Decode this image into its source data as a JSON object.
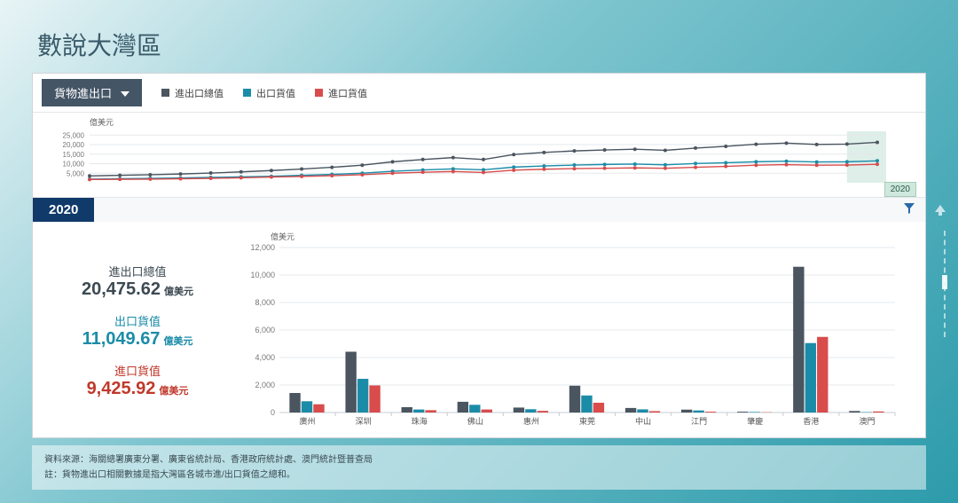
{
  "title": "數說大灣區",
  "dropdown_label": "貨物進出口",
  "legend": [
    {
      "label": "進出口總值",
      "color": "#4a5560"
    },
    {
      "label": "出口貨值",
      "color": "#1b8ca8"
    },
    {
      "label": "進口貨值",
      "color": "#d84c4c"
    }
  ],
  "y_unit": "億美元",
  "selected_year": "2020",
  "timeline": {
    "yticks": [
      5000,
      10000,
      15000,
      20000,
      25000
    ],
    "ylim": [
      0,
      27000
    ],
    "n_points": 27,
    "series": {
      "total": [
        3600,
        3900,
        4200,
        4600,
        5100,
        5700,
        6400,
        7200,
        8100,
        9200,
        11000,
        12200,
        13200,
        12200,
        14800,
        15900,
        16700,
        17200,
        17600,
        17000,
        18200,
        19100,
        20200,
        20800,
        20100,
        20300,
        21200
      ],
      "export": [
        1900,
        2100,
        2300,
        2500,
        2800,
        3100,
        3400,
        3900,
        4400,
        5000,
        6000,
        6700,
        7300,
        6800,
        8200,
        8800,
        9300,
        9600,
        9800,
        9400,
        10100,
        10500,
        11000,
        11300,
        10900,
        11000,
        11500
      ],
      "import": [
        1700,
        1800,
        1900,
        2100,
        2300,
        2600,
        3000,
        3300,
        3700,
        4200,
        5000,
        5500,
        5900,
        5400,
        6600,
        7100,
        7400,
        7600,
        7800,
        7600,
        8100,
        8600,
        9200,
        9500,
        9200,
        9300,
        9700
      ]
    },
    "colors": {
      "total": "#4a5560",
      "export": "#1b8ca8",
      "import": "#d84c4c"
    },
    "highlight_last": true,
    "highlight_fill": "#cfe8de",
    "grid_color": "#e6e9ec",
    "label_fontsize": 8
  },
  "stats": {
    "total": {
      "label": "進出口總值",
      "value": "20,475.62",
      "unit": "億美元"
    },
    "export": {
      "label": "出口貨值",
      "value": "11,049.67",
      "unit": "億美元"
    },
    "import": {
      "label": "進口貨值",
      "value": "9,425.92",
      "unit": "億美元"
    }
  },
  "barchart": {
    "ylim": [
      0,
      12000
    ],
    "ytick_step": 2000,
    "categories": [
      "廣州",
      "深圳",
      "珠海",
      "佛山",
      "惠州",
      "東莞",
      "中山",
      "江門",
      "肇慶",
      "香港",
      "澳門"
    ],
    "series_colors": {
      "total": "#4a5560",
      "export": "#1b8ca8",
      "import": "#d84c4c"
    },
    "data": {
      "total": [
        1420,
        4420,
        390,
        780,
        360,
        1950,
        330,
        210,
        60,
        10600,
        110
      ],
      "export": [
        820,
        2450,
        220,
        560,
        240,
        1240,
        230,
        150,
        40,
        5050,
        30
      ],
      "import": [
        600,
        1970,
        170,
        220,
        120,
        710,
        100,
        60,
        20,
        5500,
        80
      ]
    },
    "bar_group_width": 0.64,
    "grid_color": "#e6e9ec",
    "label_fontsize": 9
  },
  "footnote": {
    "line1_prefix": "資料來源：",
    "line1": "海關總署廣東分署、廣東省統計局、香港政府統計處、澳門統計暨普查局",
    "line2_prefix": "註：",
    "line2": "貨物進出口相關數據是指大灣區各城市進/出口貨值之總和。"
  }
}
